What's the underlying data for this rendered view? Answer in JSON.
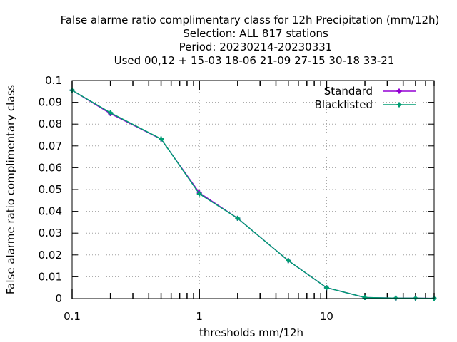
{
  "chart_data": {
    "type": "line",
    "title_lines": [
      "False alarme ratio complimentary class  for 12h Precipitation (mm/12h)",
      "Selection: ALL    817 stations",
      "Period: 20230214-20230331",
      "Used  00,12  + 15-03 18-06 21-09 27-15 30-18 33-21"
    ],
    "xlabel": "thresholds mm/12h",
    "ylabel": "False alarme ratio complimentary class",
    "x_scale": "log",
    "xlim": [
      0.1,
      70
    ],
    "ylim": [
      0,
      0.1
    ],
    "x_ticks": [
      0.1,
      1,
      10
    ],
    "x_tick_labels": [
      "0.1",
      "1",
      "10"
    ],
    "y_ticks": [
      0,
      0.01,
      0.02,
      0.03,
      0.04,
      0.05,
      0.06,
      0.07,
      0.08,
      0.09,
      0.1
    ],
    "y_tick_labels": [
      "0",
      "0.01",
      "0.02",
      "0.03",
      "0.04",
      "0.05",
      "0.06",
      "0.07",
      "0.08",
      "0.09",
      "0.1"
    ],
    "x": [
      0.1,
      0.2,
      0.5,
      1,
      2,
      5,
      10,
      20,
      35,
      50,
      70
    ],
    "series": [
      {
        "name": "Standard",
        "color": "#9400d3",
        "values": [
          0.0955,
          0.0848,
          0.0731,
          0.0485,
          0.0368,
          0.0174,
          0.005,
          0.0005,
          0.0002,
          0.0002,
          0.0001
        ]
      },
      {
        "name": "Blacklisted",
        "color": "#009e73",
        "values": [
          0.0955,
          0.0852,
          0.0732,
          0.048,
          0.0368,
          0.0174,
          0.005,
          0.0005,
          0.0002,
          0.0002,
          0.0001
        ]
      }
    ],
    "grid": true,
    "legend_position": "top-right"
  }
}
